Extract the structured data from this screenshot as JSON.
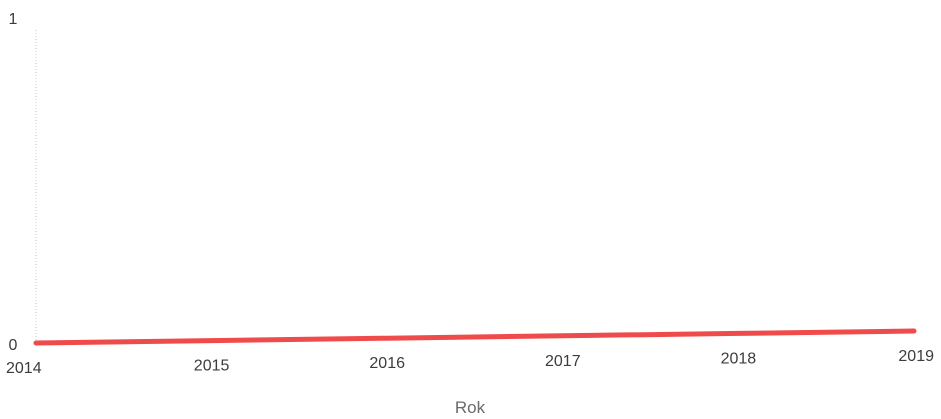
{
  "chart_data": {
    "type": "line",
    "title": "",
    "xlabel": "Rok",
    "ylabel": "",
    "x": [
      "2014",
      "2015",
      "2016",
      "2017",
      "2018",
      "2019"
    ],
    "yticks": [
      "0",
      "1"
    ],
    "ylim": [
      0,
      1
    ],
    "series": [
      {
        "values": [
          0,
          0,
          0,
          0,
          0,
          0
        ],
        "color": "#ef4b4b"
      }
    ],
    "grid": false,
    "legend": "none"
  }
}
